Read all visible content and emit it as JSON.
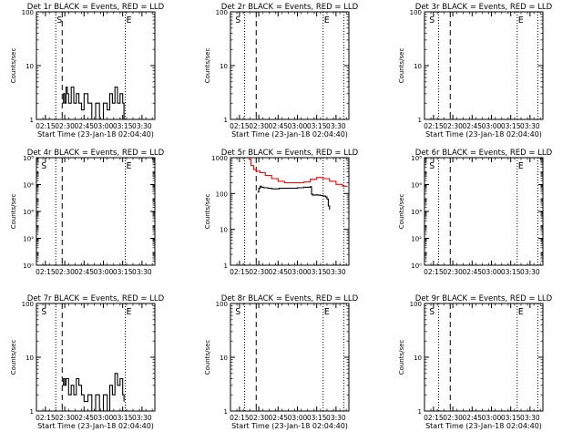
{
  "chart_data": [
    {
      "type": "line",
      "title": "Det 1r BLACK = Events, RED = LLD",
      "xlabel": "Start Time (23-Jan-18 02:04:40)",
      "ylabel": "Counts/sec",
      "yscale": "log",
      "xlim": [
        "02:08",
        "03:40"
      ],
      "ylim": [
        1,
        100
      ],
      "xticks": [
        "02:15",
        "02:30",
        "02:45",
        "03:00",
        "03:15",
        "03:30"
      ],
      "yticks": [
        "1",
        "10",
        "100"
      ],
      "markers": [
        {
          "label": "S",
          "time": "02:23"
        },
        {
          "label": "E",
          "time": "03:17"
        }
      ],
      "dotted_lines": [
        "02:23",
        "03:17"
      ],
      "dashed_lines": [
        "02:28"
      ],
      "series": [
        {
          "color": "#000000",
          "x": [
            "02:28",
            "02:29",
            "02:30",
            "02:31",
            "02:32",
            "02:33",
            "02:35",
            "02:37",
            "02:39",
            "02:41",
            "02:43",
            "02:45",
            "02:48",
            "02:51",
            "02:54",
            "02:57",
            "03:00",
            "03:03",
            "03:05",
            "03:07",
            "03:09",
            "03:11",
            "03:13",
            "03:15",
            "03:16"
          ],
          "y": [
            2,
            3,
            2,
            4,
            3,
            2,
            4,
            2,
            3,
            2,
            1.5,
            3,
            2,
            1,
            2,
            1,
            2,
            1.5,
            3,
            2,
            4,
            2,
            3,
            2,
            1
          ]
        }
      ]
    },
    {
      "type": "line",
      "title": "Det 2r BLACK = Events, RED = LLD",
      "xlabel": "Start Time (23-Jan-18 02:04:40)",
      "ylabel": "Counts/sec",
      "yscale": "log",
      "xlim": [
        "02:08",
        "03:40"
      ],
      "ylim": [
        1,
        100
      ],
      "xticks": [
        "02:15",
        "02:30",
        "02:45",
        "03:00",
        "03:15",
        "03:30"
      ],
      "yticks": [
        "1",
        "10",
        "100"
      ],
      "markers": [
        {
          "label": "S",
          "time": "02:11"
        },
        {
          "label": "E",
          "time": "03:20"
        }
      ],
      "dotted_lines": [
        "02:19",
        "03:20",
        "03:36"
      ],
      "dashed_lines": [
        "02:28"
      ],
      "series": []
    },
    {
      "type": "line",
      "title": "Det 3r BLACK = Events, RED = LLD",
      "xlabel": "Start Time (23-Jan-18 02:04:40)",
      "ylabel": "Counts/sec",
      "yscale": "log",
      "xlim": [
        "02:08",
        "03:40"
      ],
      "ylim": [
        1,
        100
      ],
      "xticks": [
        "02:15",
        "02:30",
        "02:45",
        "03:00",
        "03:15",
        "03:30"
      ],
      "yticks": [
        "1",
        "10",
        "100"
      ],
      "markers": [
        {
          "label": "S",
          "time": "02:11"
        },
        {
          "label": "E",
          "time": "03:20"
        }
      ],
      "dotted_lines": [
        "02:19",
        "03:20",
        "03:36"
      ],
      "dashed_lines": [
        "02:28"
      ],
      "series": []
    },
    {
      "type": "line",
      "title": "Det 4r BLACK = Events, RED = LLD",
      "xlabel": "",
      "ylabel": "Counts/sec",
      "yscale": "log",
      "xlim": [
        "02:08",
        "03:40"
      ],
      "ylim": [
        1,
        100000000
      ],
      "xticks": [
        "02:15",
        "02:30",
        "02:45",
        "03:00",
        "03:15",
        "03:30"
      ],
      "yticks": [
        "10⁰",
        "10²",
        "10⁴",
        "10⁶",
        "10⁸"
      ],
      "markers": [
        {
          "label": "S",
          "time": "02:11"
        },
        {
          "label": "E",
          "time": "03:17"
        }
      ],
      "dotted_lines": [
        "02:23",
        "03:17"
      ],
      "dashed_lines": [
        "02:28"
      ],
      "series": []
    },
    {
      "type": "line",
      "title": "Det 5r BLACK = Events, RED = LLD",
      "xlabel": "",
      "ylabel": "Counts/sec",
      "yscale": "log",
      "xlim": [
        "02:08",
        "03:40"
      ],
      "ylim": [
        1,
        1000
      ],
      "xticks": [
        "02:15",
        "02:30",
        "02:45",
        "03:00",
        "03:15",
        "03:30"
      ],
      "yticks": [
        "1",
        "10",
        "100",
        "1000"
      ],
      "markers": [],
      "dotted_lines": [
        "02:19",
        "03:20",
        "03:36"
      ],
      "dashed_lines": [
        "02:28"
      ],
      "series": [
        {
          "color": "#ff0000",
          "x": [
            "02:22",
            "02:24",
            "02:26",
            "02:28",
            "02:31",
            "02:35",
            "02:40",
            "02:45",
            "02:50",
            "02:55",
            "03:00",
            "03:05",
            "03:10",
            "03:15",
            "03:20",
            "03:25",
            "03:30",
            "03:35",
            "03:39"
          ],
          "y": [
            900,
            600,
            470,
            420,
            380,
            320,
            260,
            220,
            200,
            200,
            200,
            210,
            250,
            280,
            260,
            220,
            180,
            160,
            160
          ]
        },
        {
          "color": "#000000",
          "x": [
            "02:29",
            "02:30",
            "02:31",
            "02:32",
            "02:34",
            "02:37",
            "02:40",
            "02:43",
            "02:46",
            "02:50",
            "02:55",
            "03:00",
            "03:05",
            "03:10",
            "03:11",
            "03:12",
            "03:14",
            "03:16",
            "03:18",
            "03:20",
            "03:22",
            "03:23",
            "03:24",
            "03:25"
          ],
          "y": [
            110,
            140,
            160,
            150,
            145,
            140,
            135,
            135,
            140,
            140,
            140,
            145,
            150,
            155,
            95,
            90,
            92,
            90,
            88,
            85,
            80,
            70,
            45,
            35
          ]
        }
      ]
    },
    {
      "type": "line",
      "title": "Det 6r BLACK = Events, RED = LLD",
      "xlabel": "",
      "ylabel": "Counts/sec",
      "yscale": "log",
      "xlim": [
        "02:08",
        "03:40"
      ],
      "ylim": [
        1,
        100000000
      ],
      "xticks": [
        "02:15",
        "02:30",
        "02:45",
        "03:00",
        "03:15",
        "03:30"
      ],
      "yticks": [
        "10⁰",
        "10²",
        "10⁴",
        "10⁶",
        "10⁸"
      ],
      "markers": [
        {
          "label": "S",
          "time": "02:11"
        },
        {
          "label": "E",
          "time": "03:20"
        }
      ],
      "dotted_lines": [
        "02:19",
        "03:20",
        "03:36"
      ],
      "dashed_lines": [
        "02:28"
      ],
      "series": []
    },
    {
      "type": "line",
      "title": "Det 7r BLACK = Events, RED = LLD",
      "xlabel": "Start Time (23-Jan-18 02:04:40)",
      "ylabel": "Counts/sec",
      "yscale": "log",
      "xlim": [
        "02:08",
        "03:40"
      ],
      "ylim": [
        1,
        100
      ],
      "xticks": [
        "02:15",
        "02:30",
        "02:45",
        "03:00",
        "03:15",
        "03:30"
      ],
      "yticks": [
        "1",
        "10",
        "100"
      ],
      "markers": [
        {
          "label": "S",
          "time": "02:11"
        },
        {
          "label": "E",
          "time": "03:17"
        }
      ],
      "dotted_lines": [
        "02:23",
        "03:17"
      ],
      "dashed_lines": [
        "02:28"
      ],
      "series": [
        {
          "color": "#000000",
          "x": [
            "02:28",
            "02:29",
            "02:30",
            "02:31",
            "02:33",
            "02:35",
            "02:37",
            "02:39",
            "02:41",
            "02:43",
            "02:45",
            "02:48",
            "02:51",
            "02:54",
            "02:57",
            "03:00",
            "03:03",
            "03:05",
            "03:07",
            "03:09",
            "03:11",
            "03:13",
            "03:15",
            "03:16"
          ],
          "y": [
            3,
            4,
            3,
            4,
            2,
            3,
            2,
            4,
            3,
            2,
            1.5,
            2,
            1,
            2,
            1,
            2,
            1,
            3,
            2,
            5,
            3,
            4,
            2,
            1.5
          ]
        }
      ]
    },
    {
      "type": "line",
      "title": "Det 8r BLACK = Events, RED = LLD",
      "xlabel": "Start Time (23-Jan-18 02:04:40)",
      "ylabel": "Counts/sec",
      "yscale": "log",
      "xlim": [
        "02:08",
        "03:40"
      ],
      "ylim": [
        1,
        100
      ],
      "xticks": [
        "02:15",
        "02:30",
        "02:45",
        "03:00",
        "03:15",
        "03:30"
      ],
      "yticks": [
        "1",
        "10",
        "100"
      ],
      "markers": [
        {
          "label": "S",
          "time": "02:11"
        },
        {
          "label": "E",
          "time": "03:20"
        }
      ],
      "dotted_lines": [
        "02:19",
        "03:20",
        "03:36"
      ],
      "dashed_lines": [
        "02:28"
      ],
      "series": []
    },
    {
      "type": "line",
      "title": "Det 9r BLACK = Events, RED = LLD",
      "xlabel": "Start Time (23-Jan-18 02:04:40)",
      "ylabel": "Counts/sec",
      "yscale": "log",
      "xlim": [
        "02:08",
        "03:40"
      ],
      "ylim": [
        1,
        100
      ],
      "xticks": [
        "02:15",
        "02:30",
        "02:45",
        "03:00",
        "03:15",
        "03:30"
      ],
      "yticks": [
        "1",
        "10",
        "100"
      ],
      "markers": [
        {
          "label": "S",
          "time": "02:11"
        },
        {
          "label": "E",
          "time": "03:20"
        }
      ],
      "dotted_lines": [
        "02:19",
        "03:20",
        "03:36"
      ],
      "dashed_lines": [
        "02:28"
      ],
      "series": []
    }
  ]
}
